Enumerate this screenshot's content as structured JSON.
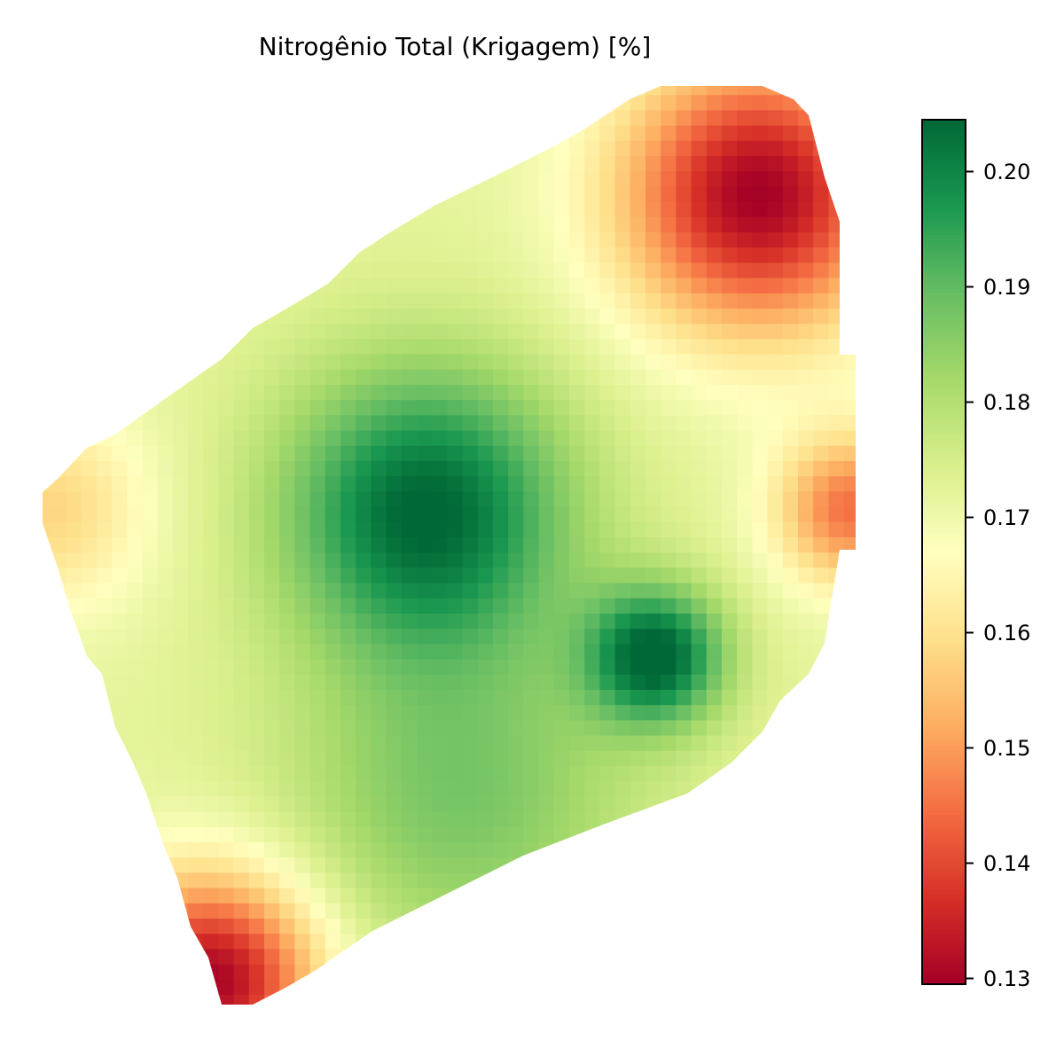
{
  "chart_data": {
    "type": "heatmap",
    "title": "Nitrogênio Total (Krigagem) [%]",
    "xlabel": "",
    "ylabel": "",
    "colormap": "RdYlGn",
    "colormap_stops": [
      "#a50026",
      "#d73027",
      "#f46d43",
      "#fdae61",
      "#fee08b",
      "#ffffbf",
      "#d9ef8b",
      "#a6d96a",
      "#66bd63",
      "#1a9850",
      "#006837"
    ],
    "value_range": [
      0.1295,
      0.2045
    ],
    "colorbar": {
      "ticks": [
        0.13,
        0.14,
        0.15,
        0.16,
        0.17,
        0.18,
        0.19,
        0.2
      ],
      "tick_labels": [
        "0.13",
        "0.14",
        "0.15",
        "0.16",
        "0.17",
        "0.18",
        "0.19",
        "0.20"
      ]
    },
    "hotspots": [
      {
        "value": 0.2045,
        "area": "center-left"
      },
      {
        "value": 0.2045,
        "area": "center-right"
      },
      {
        "value": 0.1295,
        "area": "top-right"
      },
      {
        "value": 0.1295,
        "area": "bottom-left"
      },
      {
        "value": 0.145,
        "area": "right-edge"
      },
      {
        "value": 0.158,
        "area": "left-edge"
      },
      {
        "value": 0.187,
        "area": "lower-center"
      }
    ],
    "axes_visible": false,
    "grid": false
  }
}
